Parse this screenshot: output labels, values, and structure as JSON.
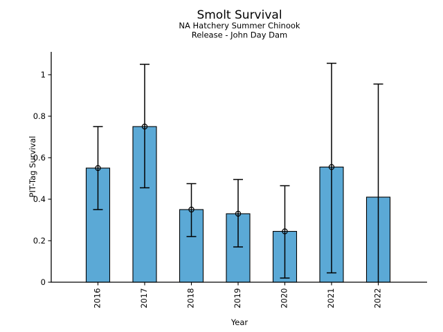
{
  "chart_data": {
    "type": "bar",
    "title": "Smolt Survival",
    "subtitle1": "NA Hatchery Summer Chinook",
    "subtitle2": "Release - John Day Dam",
    "xlabel": "Year",
    "ylabel": "PIT-Tag Survival",
    "categories": [
      "2016",
      "2017",
      "2018",
      "2019",
      "2020",
      "2021",
      "2022"
    ],
    "values": [
      0.55,
      0.75,
      0.35,
      0.33,
      0.245,
      0.555,
      0.41
    ],
    "error_low": [
      0.35,
      0.455,
      0.22,
      0.17,
      0.02,
      0.045,
      0
    ],
    "error_high": [
      0.75,
      1.05,
      0.475,
      0.495,
      0.465,
      1.055,
      0.955
    ],
    "point_markers": [
      true,
      true,
      true,
      true,
      true,
      true,
      false
    ],
    "ytick_values": [
      0,
      0.2,
      0.4,
      0.6,
      0.8,
      1
    ],
    "ytick_labels": [
      "0",
      "0.2",
      "0.4",
      "0.6",
      "0.8",
      "1"
    ],
    "ylim": [
      0,
      1.11
    ],
    "grid": false,
    "legend": null,
    "bar_color": "#5BA9D6",
    "bar_edge_color": "#000000",
    "error_bar_color": "#000000",
    "text_color": "#000000"
  }
}
